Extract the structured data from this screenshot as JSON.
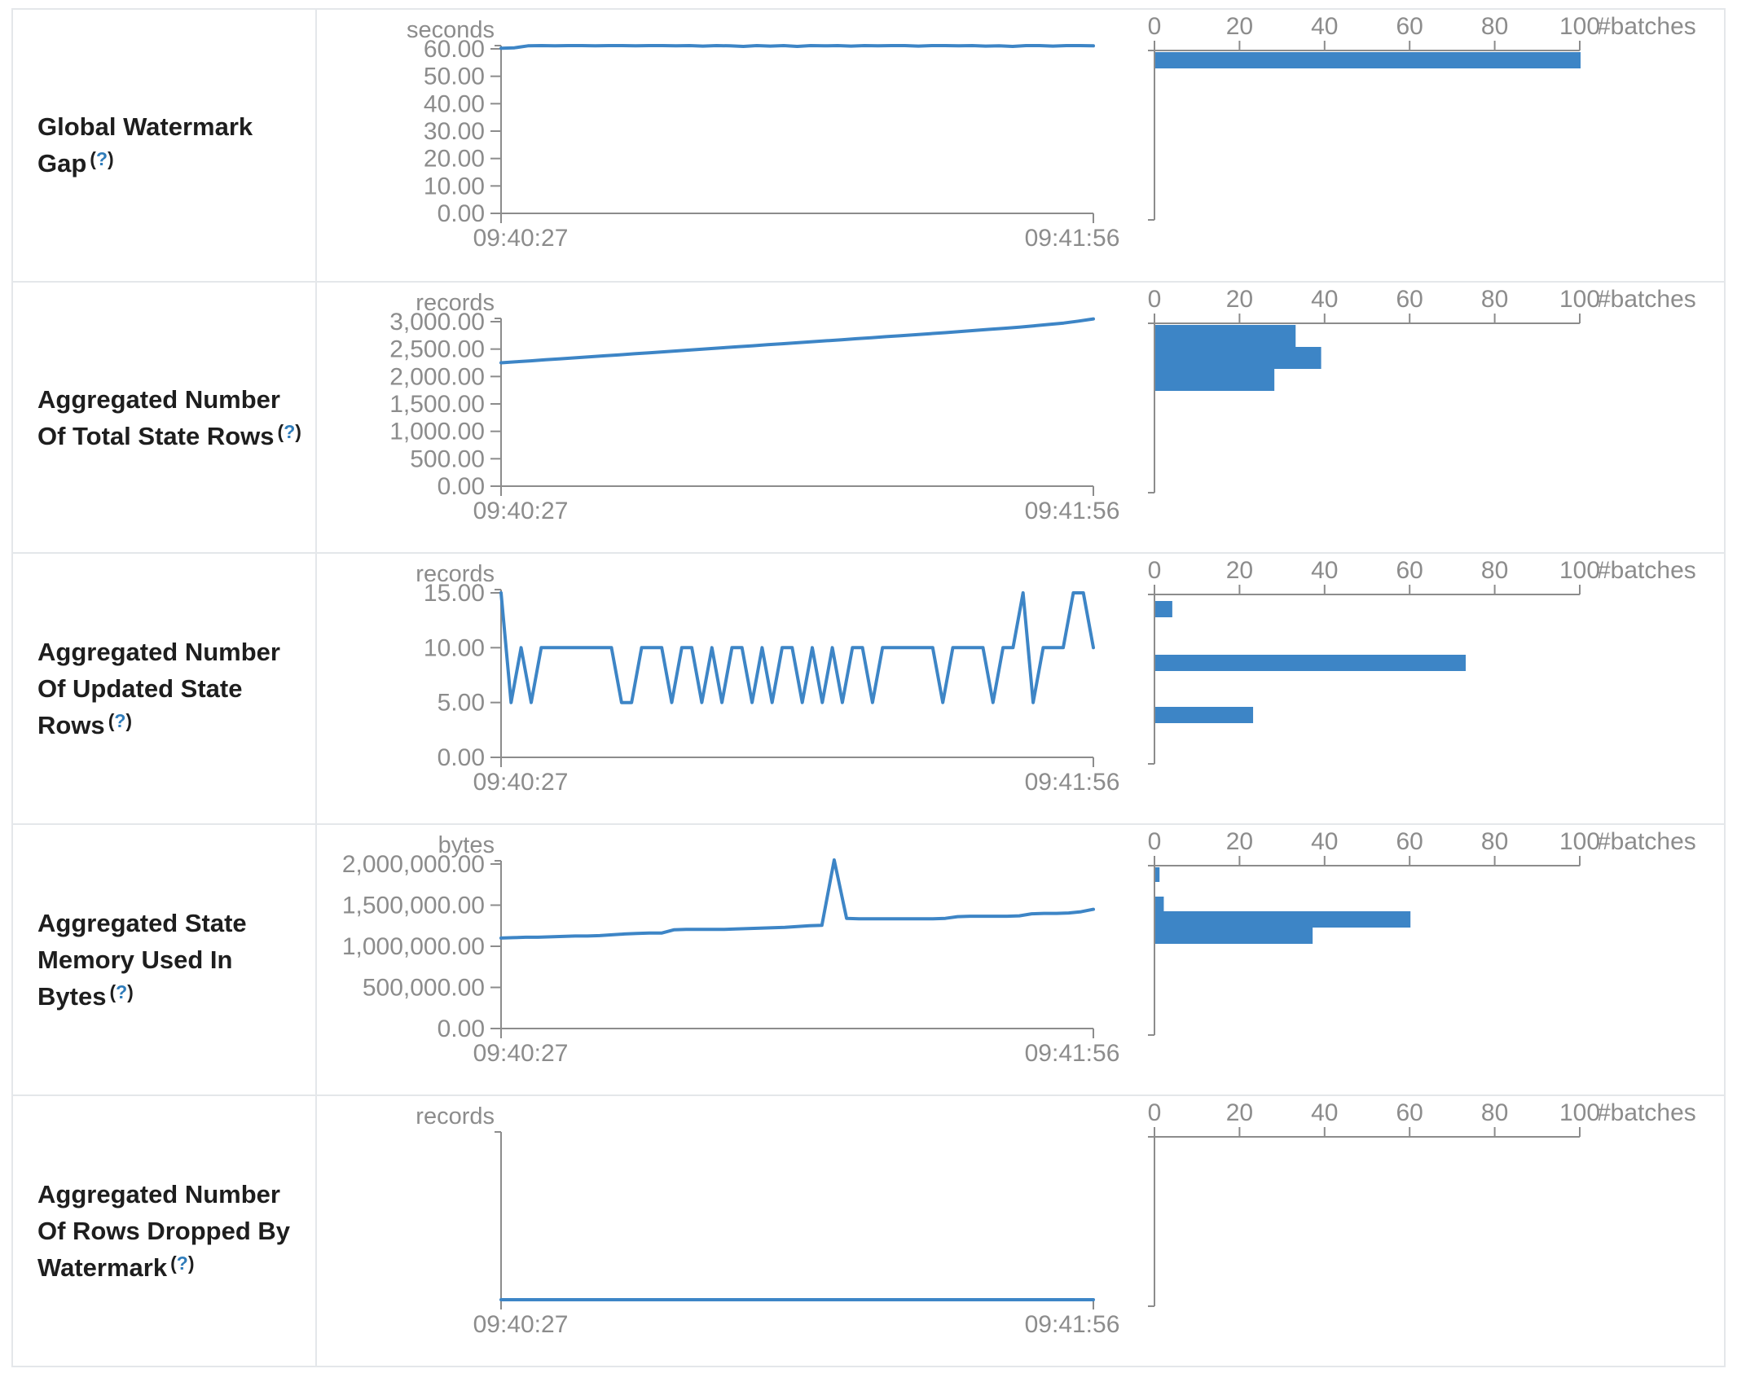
{
  "colors": {
    "line_blue": "#3d85c6",
    "bar_blue": "#3d85c6",
    "axis_gray": "#8c8c8c",
    "label_dark": "#1e1e1e",
    "help_blue": "#2f7cba",
    "border_gray": "#e4e7ea"
  },
  "help": {
    "open": "(",
    "q": "?",
    "close": ")"
  },
  "x_axis": {
    "start": "09:40:27",
    "end": "09:41:56"
  },
  "hist_axis": {
    "tick_labels": [
      "0",
      "20",
      "40",
      "60",
      "80",
      "100"
    ],
    "max": 100,
    "title": "#batches"
  },
  "rows": [
    {
      "label": "Global Watermark Gap",
      "unit": "seconds"
    },
    {
      "label": "Aggregated Number Of Total State Rows",
      "unit": "records"
    },
    {
      "label": "Aggregated Number Of Updated State Rows",
      "unit": "records"
    },
    {
      "label": "Aggregated State Memory Used In Bytes",
      "unit": "bytes"
    },
    {
      "label": "Aggregated Number Of Rows Dropped By Watermark",
      "unit": "records"
    }
  ],
  "chart_data": [
    {
      "type": "line",
      "title": "Global Watermark Gap",
      "ylabel": "seconds",
      "x_range": [
        "09:40:27",
        "09:41:56"
      ],
      "y_tick_labels": [
        "60.00",
        "50.00",
        "40.00",
        "30.00",
        "20.00",
        "10.00",
        "0.00"
      ],
      "y_max": 60,
      "values": [
        60.2,
        60.4,
        61.1,
        61.2,
        61.1,
        61.2,
        61.2,
        61.1,
        61.2,
        61.2,
        61.1,
        61.2,
        61.2,
        61.1,
        61.2,
        61.0,
        61.2,
        61.1,
        60.9,
        61.2,
        61.0,
        61.2,
        60.9,
        61.2,
        61.1,
        61.2,
        61.0,
        61.2,
        61.1,
        61.2,
        61.2,
        61.0,
        61.2,
        61.2,
        61.1,
        61.2,
        61.0,
        61.1,
        60.9,
        61.2,
        61.2,
        61.0,
        61.2,
        61.2,
        61.1
      ],
      "histogram": {
        "type": "bar",
        "orientation": "horizontal",
        "axis_max": 100,
        "unit": "#batches",
        "bars": [
          {
            "batches": 100,
            "y": 52,
            "h": 20
          }
        ]
      }
    },
    {
      "type": "line",
      "title": "Aggregated Number Of Total State Rows",
      "ylabel": "records",
      "x_range": [
        "09:40:27",
        "09:41:56"
      ],
      "y_tick_labels": [
        "3,000.00",
        "2,500.00",
        "2,000.00",
        "1,500.00",
        "1,000.00",
        "500.00",
        "0.00"
      ],
      "y_max": 3000,
      "values": [
        2250,
        2268,
        2286,
        2305,
        2323,
        2341,
        2360,
        2378,
        2396,
        2415,
        2433,
        2451,
        2470,
        2488,
        2506,
        2525,
        2543,
        2561,
        2580,
        2598,
        2616,
        2635,
        2653,
        2671,
        2690,
        2708,
        2726,
        2745,
        2763,
        2781,
        2800,
        2820,
        2840,
        2860,
        2880,
        2900,
        2925,
        2950,
        2975,
        3010,
        3050
      ],
      "histogram": {
        "type": "bar",
        "orientation": "horizontal",
        "axis_max": 100,
        "unit": "#batches",
        "bars": [
          {
            "batches": 33,
            "y": 52,
            "h": 27
          },
          {
            "batches": 39,
            "y": 79,
            "h": 27
          },
          {
            "batches": 28,
            "y": 106,
            "h": 27
          }
        ]
      }
    },
    {
      "type": "line",
      "title": "Aggregated Number Of Updated State Rows",
      "ylabel": "records",
      "x_range": [
        "09:40:27",
        "09:41:56"
      ],
      "y_tick_labels": [
        "15.00",
        "10.00",
        "5.00",
        "0.00"
      ],
      "y_max": 15,
      "values": [
        15,
        5,
        10,
        5,
        10,
        10,
        10,
        10,
        10,
        10,
        10,
        10,
        5,
        5,
        10,
        10,
        10,
        5,
        10,
        10,
        5,
        10,
        5,
        10,
        10,
        5,
        10,
        5,
        10,
        10,
        5,
        10,
        5,
        10,
        5,
        10,
        10,
        5,
        10,
        10,
        10,
        10,
        10,
        10,
        5,
        10,
        10,
        10,
        10,
        5,
        10,
        10,
        15,
        5,
        10,
        10,
        10,
        15,
        15,
        10
      ],
      "histogram": {
        "type": "bar",
        "orientation": "horizontal",
        "axis_max": 100,
        "unit": "#batches",
        "bars": [
          {
            "batches": 4,
            "y": 58,
            "h": 20
          },
          {
            "batches": 73,
            "y": 124,
            "h": 20
          },
          {
            "batches": 23,
            "y": 188,
            "h": 20
          }
        ]
      }
    },
    {
      "type": "line",
      "title": "Aggregated State Memory Used In Bytes",
      "ylabel": "bytes",
      "x_range": [
        "09:40:27",
        "09:41:56"
      ],
      "y_tick_labels": [
        "2,000,000.00",
        "1,500,000.00",
        "1,000,000.00",
        "500,000.00",
        "0.00"
      ],
      "y_max": 2000000,
      "values": [
        1100000,
        1105000,
        1110000,
        1110000,
        1115000,
        1120000,
        1125000,
        1125000,
        1130000,
        1140000,
        1150000,
        1155000,
        1160000,
        1160000,
        1200000,
        1205000,
        1205000,
        1205000,
        1205000,
        1210000,
        1215000,
        1220000,
        1225000,
        1230000,
        1240000,
        1250000,
        1255000,
        2050000,
        1340000,
        1335000,
        1335000,
        1335000,
        1335000,
        1335000,
        1335000,
        1335000,
        1340000,
        1360000,
        1365000,
        1365000,
        1365000,
        1365000,
        1370000,
        1395000,
        1400000,
        1400000,
        1405000,
        1420000,
        1450000
      ],
      "histogram": {
        "type": "bar",
        "orientation": "horizontal",
        "axis_max": 100,
        "unit": "#batches",
        "bars": [
          {
            "batches": 1,
            "y": 52,
            "h": 18
          },
          {
            "batches": 2,
            "y": 88,
            "h": 18
          },
          {
            "batches": 60,
            "y": 106,
            "h": 20
          },
          {
            "batches": 37,
            "y": 126,
            "h": 20
          }
        ]
      }
    },
    {
      "type": "line",
      "title": "Aggregated Number Of Rows Dropped By Watermark",
      "ylabel": "records",
      "x_range": [
        "09:40:27",
        "09:41:56"
      ],
      "y_tick_labels": [],
      "y_max": 1,
      "values": [
        0,
        0
      ],
      "histogram": {
        "type": "bar",
        "orientation": "horizontal",
        "axis_max": 100,
        "unit": "#batches",
        "bars": []
      }
    }
  ]
}
